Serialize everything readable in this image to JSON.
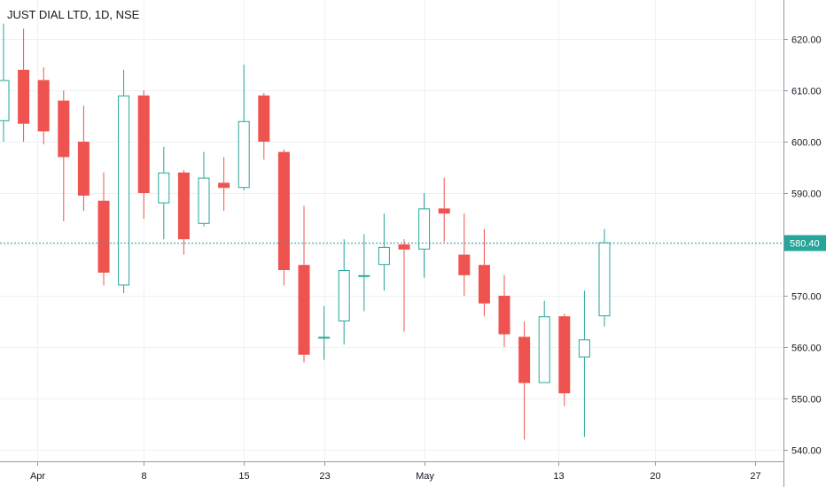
{
  "chart_data": {
    "type": "candlestick",
    "title": "JUST DIAL LTD, 1D, NSE",
    "ylim": [
      537,
      628
    ],
    "y_ticks": [
      "620.00",
      "610.00",
      "600.00",
      "590.00",
      "580.00",
      "570.00",
      "560.00",
      "550.00",
      "540.00"
    ],
    "x_ticks": [
      "Apr",
      "8",
      "15",
      "23",
      "May",
      "13",
      "20",
      "27"
    ],
    "current_price": "580.40",
    "grid": true,
    "colors": {
      "up": "#26a69a",
      "down": "#ef5350",
      "current_line": "#26a69a",
      "grid": "#eef0f3",
      "text": "#131722"
    },
    "candles": [
      {
        "slot": 0,
        "open": 604.0,
        "high": 623.0,
        "low": 600.0,
        "close": 612.0
      },
      {
        "slot": 1,
        "open": 614.0,
        "high": 622.0,
        "low": 600.0,
        "close": 603.5
      },
      {
        "slot": 2,
        "open": 612.0,
        "high": 614.5,
        "low": 599.5,
        "close": 602.0
      },
      {
        "slot": 3,
        "open": 608.0,
        "high": 610.0,
        "low": 584.5,
        "close": 597.0
      },
      {
        "slot": 4,
        "open": 600.0,
        "high": 607.0,
        "low": 586.5,
        "close": 589.5
      },
      {
        "slot": 5,
        "open": 588.5,
        "high": 594.0,
        "low": 572.0,
        "close": 574.5
      },
      {
        "slot": 6,
        "open": 572.0,
        "high": 614.0,
        "low": 570.5,
        "close": 609.0
      },
      {
        "slot": 7,
        "open": 609.0,
        "high": 610.0,
        "low": 585.0,
        "close": 590.0
      },
      {
        "slot": 8,
        "open": 588.0,
        "high": 599.0,
        "low": 581.0,
        "close": 594.0
      },
      {
        "slot": 9,
        "open": 594.0,
        "high": 594.5,
        "low": 578.0,
        "close": 581.0
      },
      {
        "slot": 10,
        "open": 584.0,
        "high": 598.0,
        "low": 583.5,
        "close": 593.0
      },
      {
        "slot": 11,
        "open": 592.0,
        "high": 597.0,
        "low": 586.5,
        "close": 591.0
      },
      {
        "slot": 12,
        "open": 591.0,
        "high": 615.0,
        "low": 590.5,
        "close": 604.0
      },
      {
        "slot": 13,
        "open": 609.0,
        "high": 609.5,
        "low": 596.5,
        "close": 600.0
      },
      {
        "slot": 14,
        "open": 598.0,
        "high": 598.5,
        "low": 572.0,
        "close": 575.0
      },
      {
        "slot": 15,
        "open": 576.0,
        "high": 587.5,
        "low": 557.0,
        "close": 558.5
      },
      {
        "slot": 16,
        "open": 562.0,
        "high": 568.0,
        "low": 557.5,
        "close": 562.0
      },
      {
        "slot": 17,
        "open": 565.0,
        "high": 581.0,
        "low": 560.5,
        "close": 575.0
      },
      {
        "slot": 18,
        "open": 574.0,
        "high": 582.0,
        "low": 567.0,
        "close": 574.0
      },
      {
        "slot": 19,
        "open": 576.0,
        "high": 586.0,
        "low": 571.0,
        "close": 579.5
      },
      {
        "slot": 20,
        "open": 580.0,
        "high": 581.0,
        "low": 563.0,
        "close": 579.0
      },
      {
        "slot": 21,
        "open": 579.0,
        "high": 590.0,
        "low": 573.5,
        "close": 587.0
      },
      {
        "slot": 22,
        "open": 587.0,
        "high": 593.0,
        "low": 580.5,
        "close": 586.0
      },
      {
        "slot": 23,
        "open": 578.0,
        "high": 586.0,
        "low": 570.0,
        "close": 574.0
      },
      {
        "slot": 24,
        "open": 576.0,
        "high": 583.0,
        "low": 566.0,
        "close": 568.5
      },
      {
        "slot": 25,
        "open": 570.0,
        "high": 574.0,
        "low": 560.0,
        "close": 562.5
      },
      {
        "slot": 26,
        "open": 562.0,
        "high": 565.0,
        "low": 542.0,
        "close": 553.0
      },
      {
        "slot": 27,
        "open": 553.0,
        "high": 569.0,
        "low": 553.0,
        "close": 566.0
      },
      {
        "slot": 28,
        "open": 566.0,
        "high": 566.5,
        "low": 548.5,
        "close": 551.0
      },
      {
        "slot": 29,
        "open": 558.0,
        "high": 571.0,
        "low": 542.5,
        "close": 561.5
      },
      {
        "slot": 30,
        "open": 566.0,
        "high": 583.0,
        "low": 564.0,
        "close": 580.4
      }
    ]
  }
}
